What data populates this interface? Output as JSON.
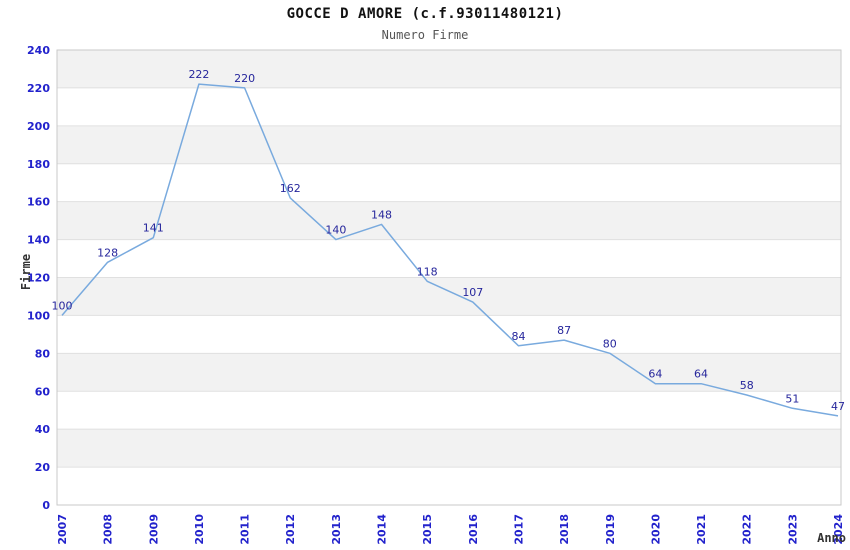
{
  "header": {
    "title": "GOCCE D AMORE (c.f.93011480121)",
    "subtitle": "Numero Firme"
  },
  "chart_data": {
    "type": "line",
    "title": "GOCCE D AMORE (c.f.93011480121)",
    "subtitle": "Numero Firme",
    "xlabel": "Anno",
    "ylabel": "Firme",
    "categories": [
      "2007",
      "2008",
      "2009",
      "2010",
      "2011",
      "2012",
      "2013",
      "2014",
      "2015",
      "2016",
      "2017",
      "2018",
      "2019",
      "2020",
      "2021",
      "2022",
      "2023",
      "2024"
    ],
    "values": [
      100,
      128,
      141,
      222,
      220,
      162,
      140,
      148,
      118,
      107,
      84,
      87,
      80,
      64,
      64,
      58,
      51,
      47
    ],
    "ylim": [
      0,
      240
    ],
    "ytick_step": 20,
    "grid": true,
    "banded_background": true,
    "legend": "none",
    "data_labels_shown": true,
    "colors": {
      "line": "#79aade",
      "data_label": "#26269c",
      "tick_label": "#2222cc",
      "band": "#f2f2f2",
      "grid": "#e0e0e0",
      "border": "#c9c9c9",
      "title": "#111111",
      "subtitle": "#555555",
      "axis_label": "#333333",
      "background": "#ffffff"
    }
  }
}
